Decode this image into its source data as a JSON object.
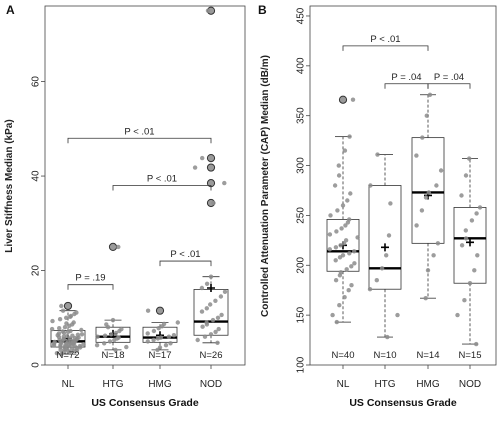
{
  "chart_data": [
    {
      "type": "box",
      "panel": "A",
      "ylabel": "Liver Stiffness Median (kPa)",
      "xlabel": "US Consensus Grade",
      "ylim": [
        0,
        76
      ],
      "yticks": [
        0,
        20,
        40,
        60
      ],
      "categories": [
        "NL",
        "HTG",
        "HMG",
        "NOD"
      ],
      "counts": [
        "N=72",
        "N=18",
        "N=17",
        "N=26"
      ],
      "boxes": [
        {
          "q1": 3.8,
          "median": 5.0,
          "q3": 7.3,
          "whisker_low": 2.3,
          "whisker_high": 11.5,
          "mean": 5.6,
          "outliers": [
            12.5
          ]
        },
        {
          "q1": 4.8,
          "median": 6.0,
          "q3": 8.0,
          "whisker_low": 3.2,
          "whisker_high": 9.5,
          "mean": 6.6,
          "outliers": [
            25.0
          ]
        },
        {
          "q1": 4.8,
          "median": 5.8,
          "q3": 8.0,
          "whisker_low": 3.2,
          "whisker_high": 9.0,
          "mean": 6.3,
          "outliers": [
            11.5
          ]
        },
        {
          "q1": 6.3,
          "median": 9.2,
          "q3": 16.0,
          "whisker_low": 4.7,
          "whisker_high": 18.7,
          "mean": 16.3,
          "outliers": [
            34.3,
            38.5,
            41.8,
            43.8,
            75.0
          ]
        }
      ],
      "points": [
        [
          2.3,
          2.5,
          2.7,
          2.8,
          3.0,
          3.1,
          3.2,
          3.3,
          3.4,
          3.5,
          3.6,
          3.7,
          3.8,
          3.8,
          3.9,
          4.0,
          4.0,
          4.1,
          4.2,
          4.2,
          4.3,
          4.4,
          4.4,
          4.5,
          4.6,
          4.6,
          4.7,
          4.8,
          4.8,
          4.9,
          5.0,
          5.0,
          5.1,
          5.2,
          5.3,
          5.4,
          5.5,
          5.6,
          5.7,
          5.8,
          5.9,
          6.0,
          6.1,
          6.2,
          6.4,
          6.5,
          6.7,
          6.8,
          7.0,
          7.2,
          7.4,
          7.6,
          7.8,
          8.0,
          8.3,
          8.6,
          9.0,
          9.3,
          9.7,
          10.0,
          10.4,
          10.8,
          11.1,
          11.5,
          12.5,
          3.0,
          4.5,
          5.5,
          6.3,
          7.1,
          8.8,
          10.2
        ],
        [
          3.2,
          3.8,
          4.2,
          4.6,
          5.0,
          5.3,
          5.6,
          5.8,
          6.0,
          6.2,
          6.5,
          6.8,
          7.2,
          7.6,
          8.0,
          8.6,
          9.5,
          25.0
        ],
        [
          3.2,
          3.7,
          4.2,
          4.6,
          5.0,
          5.3,
          5.6,
          5.8,
          6.0,
          6.3,
          6.7,
          7.2,
          7.8,
          8.2,
          8.7,
          9.0,
          11.5
        ],
        [
          4.7,
          5.3,
          6.0,
          6.5,
          7.0,
          7.6,
          8.1,
          8.6,
          9.0,
          9.5,
          10.0,
          10.6,
          11.3,
          12.0,
          12.8,
          13.6,
          14.5,
          15.5,
          16.3,
          17.2,
          18.7,
          34.3,
          38.5,
          41.8,
          43.8,
          75.0
        ]
      ],
      "brackets": [
        {
          "from": "NL",
          "to": "HTG",
          "label": "P = .19",
          "y": 17
        },
        {
          "from": "HMG",
          "to": "NOD",
          "label": "P < .01",
          "y": 22
        },
        {
          "from": "HTG",
          "to": "NOD",
          "label": "P < .01",
          "y": 38
        },
        {
          "from": "NL",
          "to": "NOD",
          "label": "P < .01",
          "y": 48
        }
      ]
    },
    {
      "type": "box",
      "panel": "B",
      "ylabel": "Controlled Attenuation Parameter (CAP) Median (dB/m)",
      "xlabel": "US Consensus Grade",
      "ylim": [
        100,
        460
      ],
      "yticks": [
        100,
        150,
        200,
        250,
        300,
        350,
        400,
        450
      ],
      "categories": [
        "NL",
        "HTG",
        "HMG",
        "NOD"
      ],
      "counts": [
        "N=40",
        "N=10",
        "N=14",
        "N=15"
      ],
      "boxes": [
        {
          "q1": 194,
          "median": 214,
          "q3": 246,
          "whisker_low": 143,
          "whisker_high": 329,
          "mean": 220,
          "outliers": [
            366
          ]
        },
        {
          "q1": 176,
          "median": 197,
          "q3": 280,
          "whisker_low": 128,
          "whisker_high": 311,
          "mean": 218,
          "outliers": []
        },
        {
          "q1": 222,
          "median": 273,
          "q3": 328,
          "whisker_low": 167,
          "whisker_high": 371,
          "mean": 270,
          "outliers": []
        },
        {
          "q1": 182,
          "median": 227,
          "q3": 258,
          "whisker_low": 121,
          "whisker_high": 307,
          "mean": 223,
          "outliers": []
        }
      ],
      "points": [
        [
          143,
          150,
          160,
          168,
          175,
          180,
          185,
          190,
          193,
          196,
          199,
          202,
          205,
          208,
          210,
          212,
          214,
          216,
          218,
          220,
          222,
          225,
          228,
          231,
          234,
          237,
          240,
          243,
          246,
          250,
          255,
          260,
          265,
          272,
          280,
          290,
          300,
          315,
          329,
          366
        ],
        [
          128,
          150,
          176,
          185,
          197,
          210,
          230,
          262,
          280,
          311
        ],
        [
          167,
          195,
          210,
          222,
          240,
          255,
          268,
          273,
          280,
          295,
          310,
          328,
          350,
          371
        ],
        [
          121,
          150,
          165,
          182,
          195,
          210,
          220,
          227,
          235,
          245,
          252,
          258,
          270,
          290,
          307
        ]
      ],
      "brackets": [
        {
          "from": "NL",
          "to": "HMG",
          "label": "P < .01",
          "y": 420
        },
        {
          "from": "HTG",
          "to": "HMG",
          "label": "P = .04",
          "y": 382
        },
        {
          "from": "HMG",
          "to": "NOD",
          "label": "P = .04",
          "y": 382
        }
      ]
    }
  ]
}
